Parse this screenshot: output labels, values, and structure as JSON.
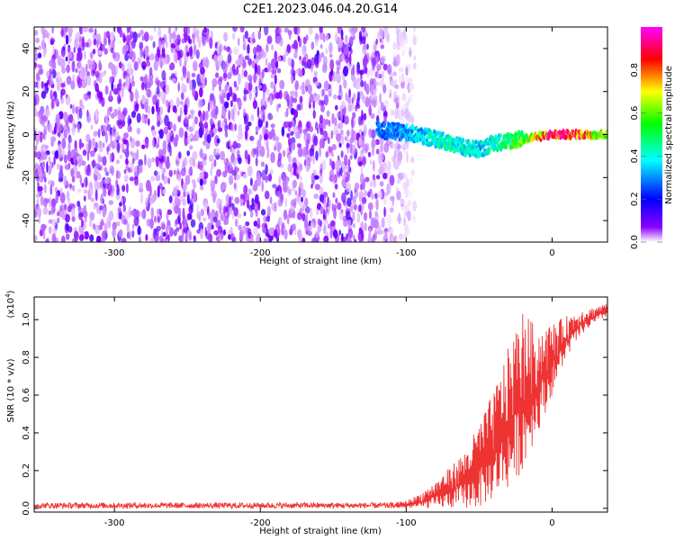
{
  "title": "C2E1.2023.046.04.20.G14",
  "chart_data": [
    {
      "type": "heatmap",
      "name": "spectrogram",
      "xlabel": "Height of straight line (km)",
      "ylabel": "Frequency (Hz)",
      "xlim": [
        -355,
        38
      ],
      "ylim": [
        -50,
        50
      ],
      "xticks": [
        -300,
        -200,
        -100,
        0
      ],
      "xtick_labels": [
        "-300",
        "-200",
        "-100",
        "0"
      ],
      "yticks": [
        -40,
        -20,
        0,
        20,
        40
      ],
      "ytick_labels": [
        "-40",
        "-20",
        "0",
        "20",
        "40"
      ],
      "colorbar": {
        "label": "Normalized spectral amplitude",
        "range": [
          0,
          1
        ],
        "ticks": [
          0.0,
          0.2,
          0.4,
          0.6,
          0.8
        ],
        "tick_labels": [
          "0.0",
          "0.2",
          "0.4",
          "0.6",
          "0.8"
        ],
        "stops": [
          "#ffffff",
          "#8a00ff",
          "#0000ff",
          "#00ffff",
          "#00ff00",
          "#ffff00",
          "#ff0000",
          "#ff00ff"
        ]
      },
      "noise_region": {
        "x": [
          -355,
          -100
        ],
        "y": [
          -50,
          50
        ],
        "typical_amplitude": 0.12
      },
      "signal_track": {
        "x": [
          -120,
          -100,
          -80,
          -60,
          -50,
          -40,
          -30,
          -20,
          -10,
          0,
          10,
          20,
          30,
          38
        ],
        "freq": [
          2,
          1,
          -2,
          -6,
          -7,
          -4,
          -3,
          -2,
          -1,
          0,
          0,
          0,
          0,
          0
        ],
        "amplitude": [
          0.3,
          0.35,
          0.45,
          0.45,
          0.4,
          0.45,
          0.5,
          0.65,
          0.8,
          0.95,
          0.95,
          0.9,
          0.75,
          0.65
        ]
      }
    },
    {
      "type": "line",
      "name": "snr",
      "xlabel": "Height of straight line (km)",
      "ylabel": "SNR (10 * v/v)",
      "multiplier_label": "(x10",
      "multiplier_exp": "4",
      "multiplier_close": ")",
      "xlim": [
        -355,
        38
      ],
      "ylim": [
        -0.02,
        1.12
      ],
      "xticks": [
        -300,
        -200,
        -100,
        0
      ],
      "xtick_labels": [
        "-300",
        "-200",
        "-100",
        "0"
      ],
      "yticks": [
        0.0,
        0.2,
        0.4,
        0.6,
        0.8,
        1.0
      ],
      "ytick_labels": [
        "0.0",
        "0.2",
        "0.4",
        "0.6",
        "0.8",
        "1.0"
      ],
      "color": "#ee3333",
      "envelope": {
        "x": [
          -355,
          -200,
          -110,
          -100,
          -90,
          -80,
          -70,
          -60,
          -50,
          -40,
          -30,
          -20,
          -10,
          0,
          10,
          20,
          30,
          38
        ],
        "low": [
          0.0,
          0.0,
          0.0,
          0.0,
          0.0,
          0.0,
          0.0,
          0.0,
          0.0,
          0.05,
          0.1,
          0.2,
          0.4,
          0.6,
          0.8,
          0.92,
          0.98,
          1.02
        ],
        "high": [
          0.03,
          0.03,
          0.03,
          0.04,
          0.08,
          0.14,
          0.22,
          0.3,
          0.45,
          0.62,
          0.85,
          1.05,
          0.95,
          0.98,
          1.02,
          1.05,
          1.07,
          1.09
        ]
      }
    }
  ]
}
